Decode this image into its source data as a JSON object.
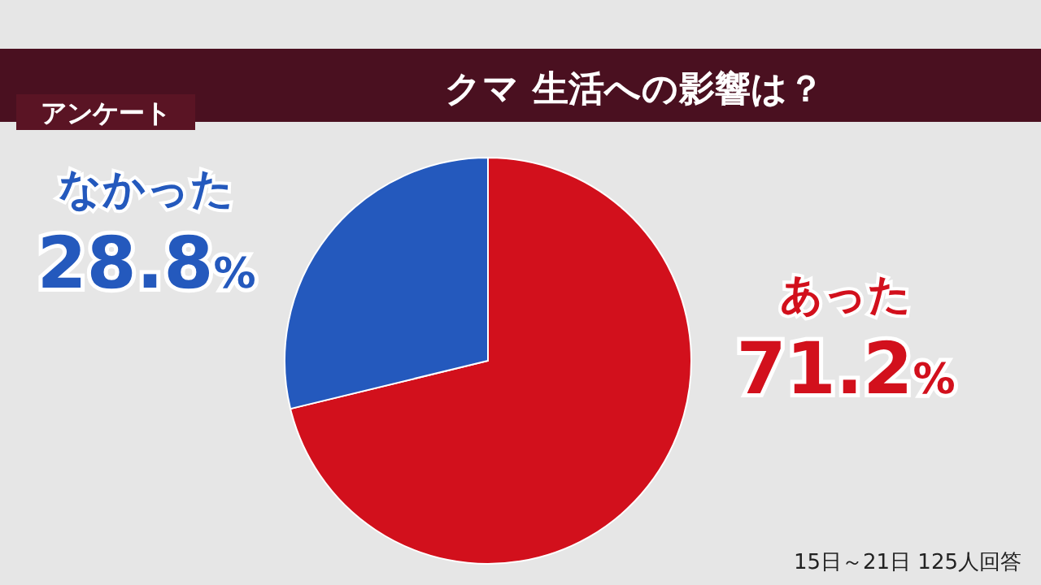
{
  "chart_data": {
    "type": "pie",
    "title": "クマ 生活への影響は？",
    "subtitle": "アンケート",
    "categories": [
      "あった",
      "なかった"
    ],
    "values": [
      71.2,
      28.8
    ],
    "colors": [
      "#d2101c",
      "#2459bd"
    ],
    "value_labels": [
      "71.2%",
      "28.8%"
    ],
    "annotations": [
      "15日～21日 125人回答"
    ],
    "legend": false
  }
}
